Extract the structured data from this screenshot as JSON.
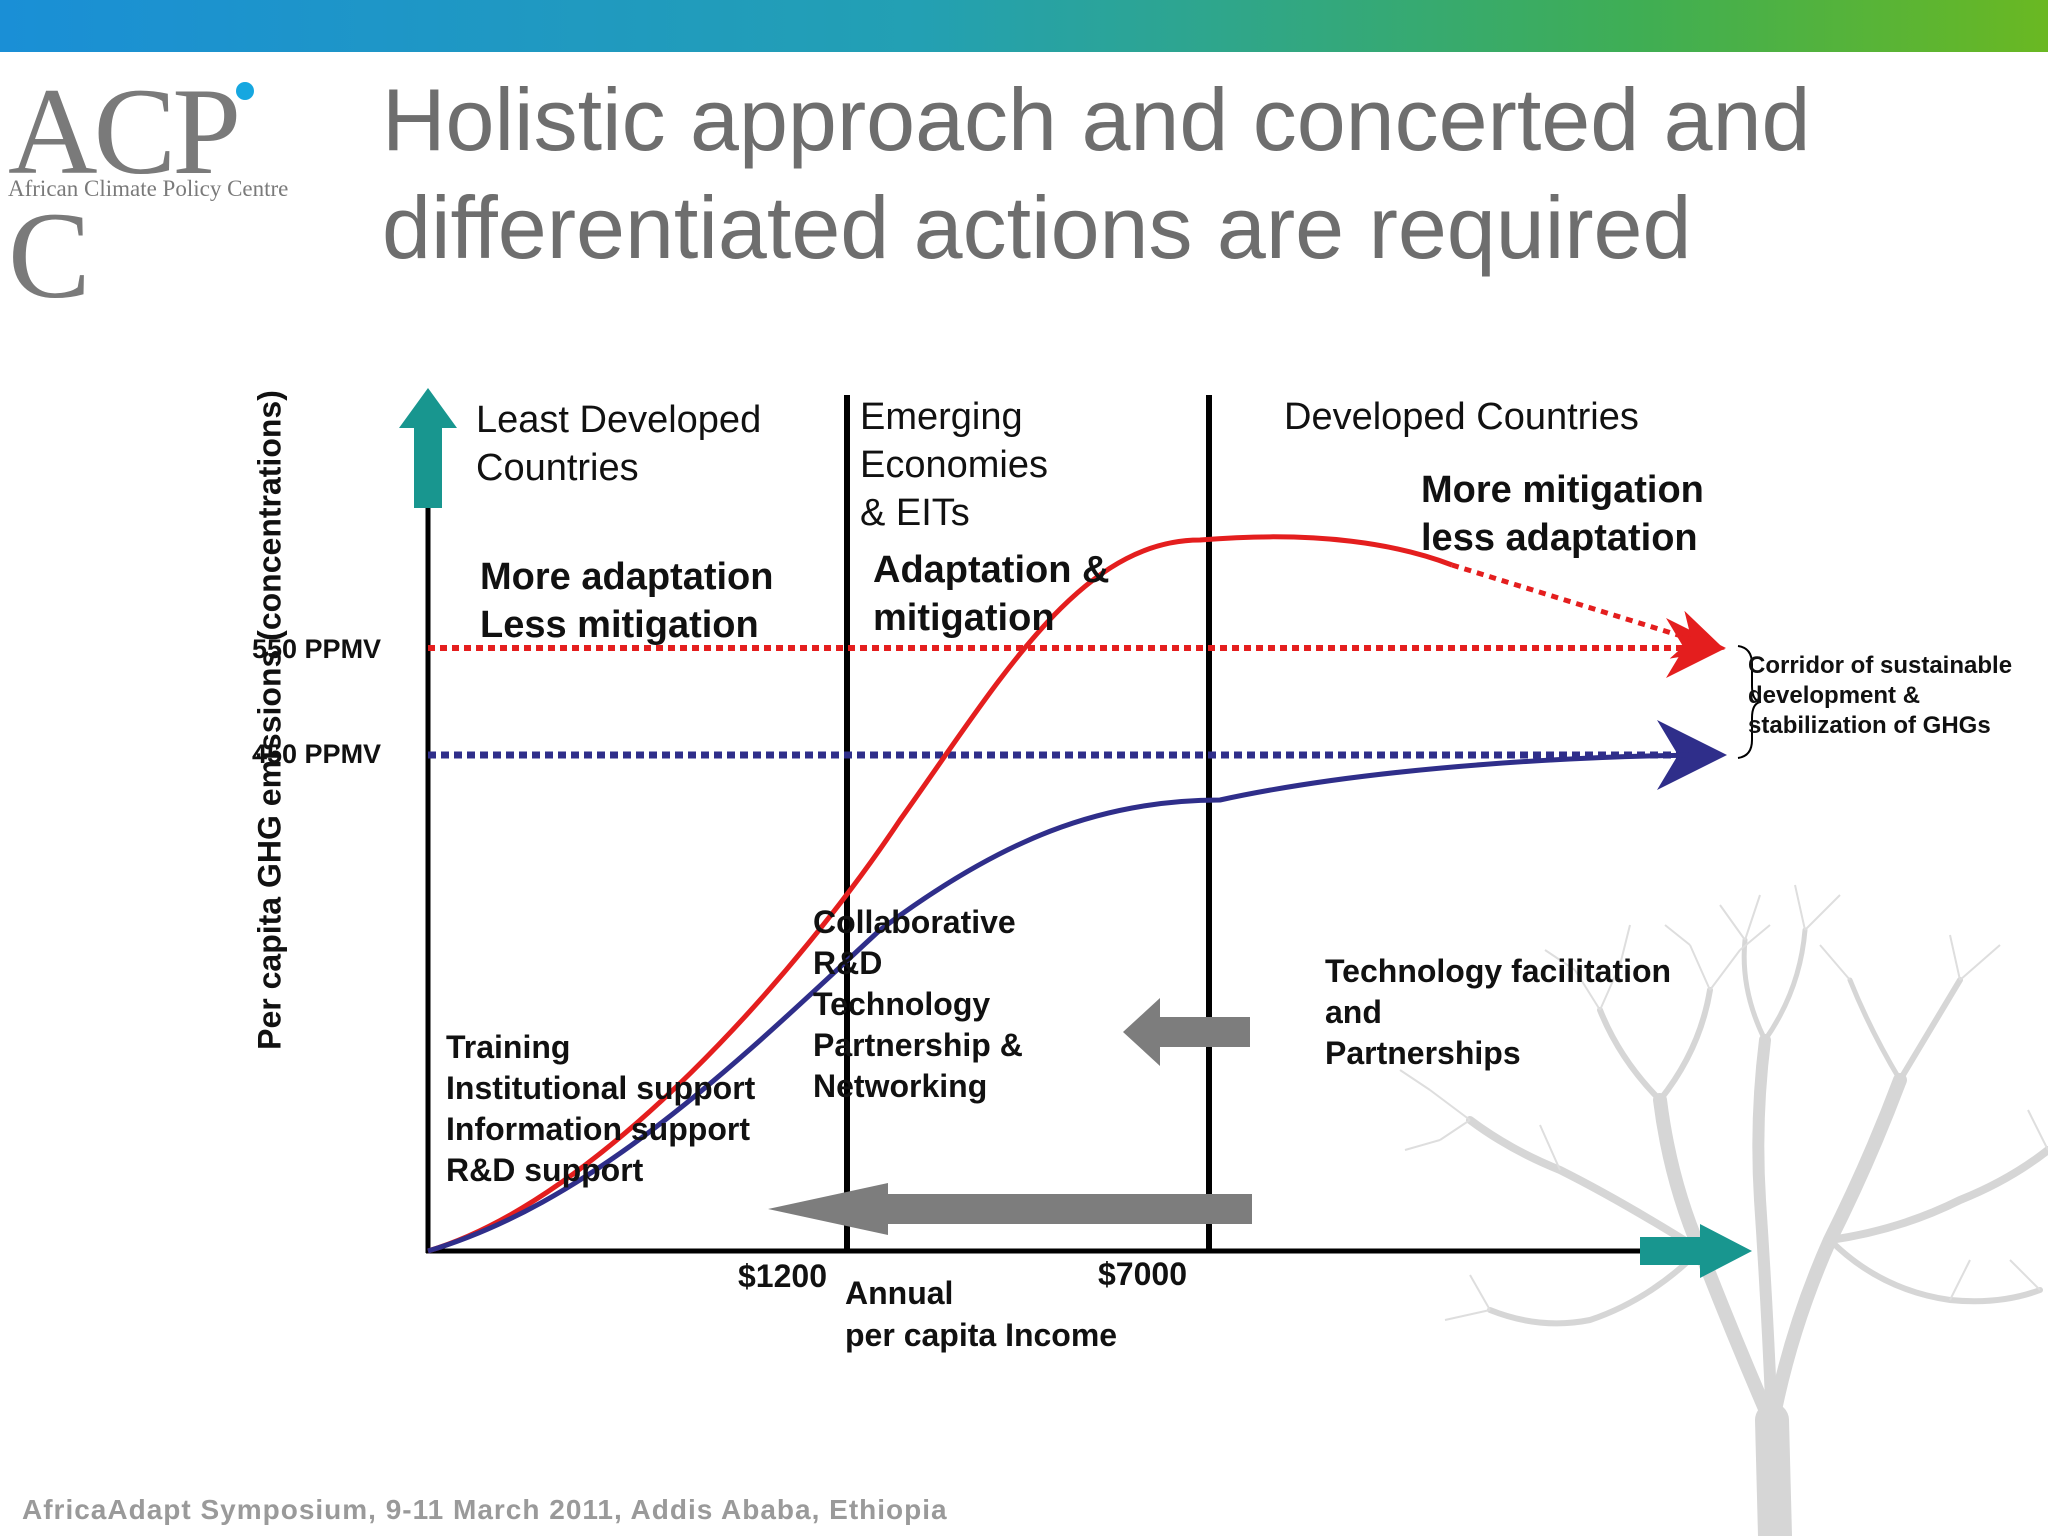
{
  "logo": {
    "mark": "ACP C",
    "subtitle": "African Climate Policy Centre"
  },
  "title": {
    "line1": "Holistic approach and concerted and",
    "line2": "differentiated actions are required"
  },
  "diagram": {
    "y_axis_label": "Per capita GHG emissions (concentrations)",
    "x_axis_label": {
      "line1": "Annual",
      "line2": "per capita Income"
    },
    "x_ticks": [
      "$1200",
      "$7000"
    ],
    "levels": [
      {
        "label": "550 PPMV",
        "color": "#e41e1e"
      },
      {
        "label": "450 PPMV",
        "color": "#2f2e8a"
      }
    ],
    "curve_colors": {
      "developed_path": "#e41e1e",
      "sustainable_path": "#2f2e8a"
    },
    "regions": {
      "ldc": {
        "line1": "Least Developed",
        "line2": "Countries"
      },
      "emerging": {
        "line1": "Emerging",
        "line2": "Economies",
        "line3": "& EITs"
      },
      "developed": {
        "line1": "Developed Countries"
      }
    },
    "strategies": {
      "ldc": {
        "line1": "More adaptation",
        "line2": "Less mitigation"
      },
      "emerging": {
        "line1": "Adaptation &",
        "line2": "mitigation"
      },
      "developed": {
        "line1": "More mitigation",
        "line2": "less adaptation"
      }
    },
    "supports": {
      "ldc": [
        "Training",
        "Institutional support",
        "Information support",
        "R&D support"
      ],
      "emerging": [
        "Collaborative",
        "R&D",
        "Technology",
        "Partnership &",
        "Networking"
      ],
      "developed": [
        "Technology facilitation",
        "and",
        "Partnerships"
      ]
    },
    "corridor": {
      "line1": "Corridor of sustainable",
      "line2": "development &",
      "line3": "stabilization of GHGs"
    }
  },
  "footer": "AfricaAdapt Symposium, 9-11 March 2011, Addis Ababa, Ethiopia"
}
